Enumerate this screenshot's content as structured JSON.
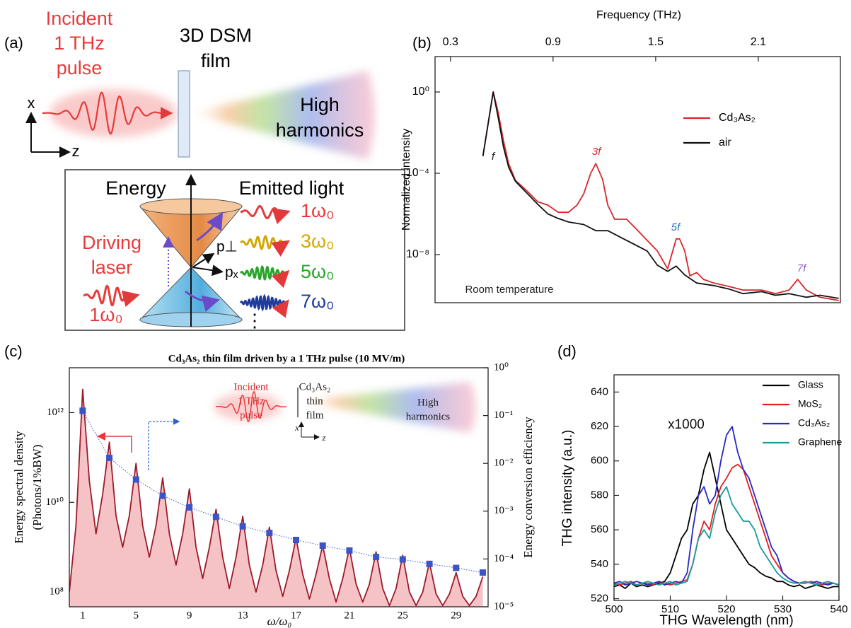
{
  "panel_labels": [
    "(a)",
    "(b)",
    "(c)",
    "(d)"
  ],
  "diagram_a": {
    "incident": [
      "Incident",
      "1 THz",
      "pulse"
    ],
    "film": [
      "3D DSM",
      "film"
    ],
    "harmonics": [
      "High",
      "harmonics"
    ],
    "axis_x": "x",
    "axis_z": "z",
    "energy": "Energy",
    "emitted": "Emitted light",
    "driving": [
      "Driving",
      "laser"
    ],
    "driving_order": "1ω₀",
    "p_perp": "p⊥",
    "p_x": "pₓ",
    "orders": [
      "1ω₀",
      "3ω₀",
      "5ω₀",
      "7ω₀"
    ],
    "more": "⋮"
  },
  "chart_data": [
    {
      "type": "line",
      "xlabel": "Frequency (THz)",
      "ylabel": "Normalized intensity",
      "xlim": [
        0.21,
        2.58
      ],
      "xticks": [
        0.3,
        0.9,
        1.5,
        2.1
      ],
      "yscale": "log",
      "ylim": [
        4.3e-11,
        55
      ],
      "yticks": [
        {
          "value": 1,
          "label": "10⁰"
        },
        {
          "value": 0.0001,
          "label": "10⁻⁴"
        },
        {
          "value": 1e-08,
          "label": "10⁻⁸"
        }
      ],
      "legend": "upper right",
      "series": [
        {
          "name": "Cd₃As₂",
          "color": "#d9262c",
          "x": [
            0.49,
            0.55,
            0.58,
            0.61,
            0.64,
            0.68,
            0.75,
            0.81,
            0.87,
            0.93,
            0.99,
            1.04,
            1.08,
            1.12,
            1.15,
            1.19,
            1.22,
            1.26,
            1.33,
            1.39,
            1.45,
            1.51,
            1.57,
            1.62,
            1.64,
            1.67,
            1.7,
            1.74,
            1.78,
            1.84,
            1.93,
            2.01,
            2.12,
            2.2,
            2.28,
            2.33,
            2.38,
            2.46,
            2.57
          ],
          "values": [
            0.0007,
            1,
            0.09,
            0.004,
            0.0003,
            4.5e-05,
            1.3e-05,
            4e-06,
            2.7e-06,
            1.2e-06,
            1.2e-06,
            2.7e-06,
            1e-05,
            0.0001,
            0.0003,
            5e-05,
            2.7e-06,
            5.5e-07,
            5.5e-07,
            1.7e-07,
            5e-08,
            1.5e-08,
            2e-09,
            5.9e-08,
            5.9e-08,
            1.5e-08,
            9e-10,
            1.3e-09,
            6e-10,
            4e-10,
            2.7e-10,
            1.8e-10,
            1.8e-10,
            1.2e-10,
            1.8e-10,
            6e-10,
            1.8e-10,
            8e-11,
            5.5e-11
          ]
        },
        {
          "name": "air",
          "color": "#111111",
          "x": [
            0.49,
            0.55,
            0.58,
            0.61,
            0.64,
            0.68,
            0.75,
            0.81,
            0.87,
            0.93,
            0.99,
            1.08,
            1.15,
            1.22,
            1.33,
            1.45,
            1.51,
            1.57,
            1.62,
            1.67,
            1.74,
            1.84,
            1.93,
            2.01,
            2.12,
            2.2,
            2.28,
            2.38,
            2.46,
            2.57
          ],
          "values": [
            0.0007,
            1,
            0.05,
            0.002,
            0.0002,
            4e-05,
            1e-05,
            3e-06,
            1e-06,
            6e-07,
            4e-07,
            3e-07,
            1.5e-07,
            1.5e-07,
            5e-08,
            1.5e-08,
            3e-09,
            1.5e-09,
            2.7e-09,
            1e-09,
            4e-10,
            3e-10,
            2e-10,
            1.2e-10,
            1.5e-10,
            1e-10,
            1.2e-10,
            8e-11,
            1e-10,
            7e-11
          ]
        }
      ],
      "annotations": [
        {
          "text": "f",
          "color": "#222222"
        },
        {
          "text": "3f",
          "color": "#d9262c"
        },
        {
          "text": "5f",
          "color": "#2a6fc0"
        },
        {
          "text": "7f",
          "color": "#8a5cc4"
        },
        {
          "text": "Room temperature",
          "color": "#222222"
        }
      ]
    },
    {
      "type": "line",
      "title": "Cd₃As₂ thin film driven by a 1 THz pulse (10 MV/m)",
      "xlabel": "ω/ω₀",
      "ylabel": [
        "Energy spectral density",
        "(Photons/1%BW)"
      ],
      "y2label": "Energy conversion efficiency",
      "xlim": [
        0,
        31.4
      ],
      "xticks": [
        1,
        5,
        9,
        13,
        17,
        21,
        25,
        29
      ],
      "yscale": "log",
      "ylim": [
        47000000.0,
        10000000000000.0
      ],
      "yticks": [
        {
          "value": 100000000.0,
          "label": "10⁸"
        },
        {
          "value": 10000000000.0,
          "label": "10¹⁰"
        },
        {
          "value": 1000000000000.0,
          "label": "10¹²"
        }
      ],
      "y2lim": [
        1e-05,
        1
      ],
      "y2ticks": [
        {
          "value": 1,
          "label": "10⁰"
        },
        {
          "value": 0.1,
          "label": "10⁻¹"
        },
        {
          "value": 0.01,
          "label": "10⁻²"
        },
        {
          "value": 0.001,
          "label": "10⁻³"
        },
        {
          "value": 0.0001,
          "label": "10⁻⁴"
        },
        {
          "value": 1e-05,
          "label": "10⁻⁵"
        }
      ],
      "series": [
        {
          "color": "#9b1b2a",
          "fill": "#f5c3c6",
          "x": [
            0,
            0.5,
            1,
            1.5,
            2,
            2.5,
            3,
            3.5,
            4,
            4.5,
            5,
            5.5,
            6,
            6.5,
            7,
            7.5,
            8,
            8.5,
            9,
            9.5,
            10,
            10.5,
            11,
            11.5,
            12,
            12.5,
            13,
            13.5,
            14,
            14.5,
            15,
            15.5,
            16,
            16.5,
            17,
            17.5,
            18,
            18.5,
            19,
            19.5,
            20,
            20.5,
            21,
            21.5,
            22,
            22.5,
            23,
            23.5,
            24,
            24.5,
            25,
            25.5,
            26,
            26.5,
            27,
            27.5,
            28,
            28.5,
            29,
            29.5,
            30,
            30.5,
            31
          ],
          "values": [
            100000000.0,
            3000000000.0,
            3300000000000.0,
            30000000000.0,
            2000000000.0,
            15000000000.0,
            220000000000.0,
            5000000000.0,
            1000000000.0,
            5000000000.0,
            74000000000.0,
            3000000000.0,
            600000000.0,
            3000000000.0,
            35000000000.0,
            2000000000.0,
            400000000.0,
            2000000000.0,
            20000000000.0,
            1000000000.0,
            200000000.0,
            1000000000.0,
            7000000000.0,
            600000000.0,
            120000000.0,
            600000000.0,
            4900000000.0,
            400000000.0,
            100000000.0,
            400000000.0,
            2800000000.0,
            300000000.0,
            80000000.0,
            300000000.0,
            1600000000.0,
            250000000.0,
            70000000.0,
            250000000.0,
            1100000000.0,
            200000000.0,
            60000000.0,
            200000000.0,
            960000000.0,
            150000000.0,
            60000000.0,
            150000000.0,
            790000000.0,
            120000000.0,
            50000000.0,
            120000000.0,
            660000000.0,
            100000000.0,
            50000000.0,
            100000000.0,
            460000000.0,
            90000000.0,
            50000000.0,
            90000000.0,
            270000000.0,
            80000000.0,
            50000000.0,
            80000000.0,
            220000000.0
          ]
        },
        {
          "color": "#3b55c8",
          "axis": "y2",
          "markers": true,
          "line_style": "dotted",
          "x": [
            1,
            3,
            5,
            7,
            9,
            11,
            13,
            15,
            17,
            19,
            21,
            23,
            25,
            27,
            29,
            31
          ],
          "values": [
            0.126,
            0.013,
            0.0046,
            0.0021,
            0.0012,
            0.00076,
            0.00048,
            0.00035,
            0.00025,
            0.00019,
            0.00015,
            0.00011,
            9.8e-05,
            7.9e-05,
            6.5e-05,
            5.2e-05
          ]
        }
      ],
      "annotations": [
        {
          "text": "Incident",
          "color": "#d9262c"
        },
        {
          "text": "1 THz",
          "color": "#d9262c"
        },
        {
          "text": "pulse",
          "color": "#d9262c"
        },
        {
          "text": "Cd₃As₂",
          "color": "#222222"
        },
        {
          "text": "thin",
          "color": "#222222"
        },
        {
          "text": "film",
          "color": "#222222"
        },
        {
          "text": "High",
          "color": "#222222"
        },
        {
          "text": "harmonics",
          "color": "#222222"
        },
        {
          "text": "x",
          "color": "#222222"
        },
        {
          "text": "z",
          "color": "#222222"
        }
      ]
    },
    {
      "type": "line",
      "xlabel": "THG Wavelength (nm)",
      "ylabel": "THG intensity (a.u.)",
      "xlim": [
        500,
        540
      ],
      "xticks": [
        500,
        510,
        520,
        530,
        540
      ],
      "ylim": [
        519,
        650
      ],
      "yticks": [
        520,
        540,
        560,
        580,
        600,
        620,
        640
      ],
      "legend": "upper right",
      "x": [
        500,
        501,
        502,
        503,
        504,
        505,
        506,
        507,
        508,
        509,
        510,
        511,
        512,
        513,
        514,
        515,
        516,
        517,
        518,
        519,
        520,
        521,
        522,
        523,
        524,
        525,
        526,
        527,
        528,
        529,
        530,
        531,
        532,
        533,
        534,
        535,
        536,
        537,
        538,
        539,
        540
      ],
      "series": [
        {
          "name": "Glass",
          "color": "#000000",
          "values": [
            527,
            528,
            526,
            529,
            527,
            528,
            527,
            528,
            529,
            530,
            535,
            545,
            555,
            560,
            575,
            580,
            595,
            605,
            590,
            575,
            560,
            555,
            550,
            545,
            540,
            538,
            535,
            533,
            532,
            530,
            530,
            528,
            527,
            528,
            526,
            527,
            528,
            527,
            526,
            527,
            527
          ]
        },
        {
          "name": "MoS₂",
          "color": "#e02020",
          "values": [
            529,
            528,
            529,
            530,
            528,
            529,
            529,
            528,
            530,
            529,
            528,
            529,
            530,
            531,
            540,
            555,
            565,
            560,
            575,
            585,
            590,
            596,
            598,
            595,
            585,
            575,
            565,
            555,
            545,
            540,
            535,
            532,
            530,
            529,
            529,
            530,
            529,
            528,
            529,
            529,
            528
          ]
        },
        {
          "name": "Cd₃As₂",
          "color": "#2828c8",
          "values": [
            529,
            530,
            528,
            529,
            530,
            529,
            528,
            529,
            530,
            528,
            529,
            530,
            529,
            535,
            560,
            580,
            585,
            575,
            580,
            600,
            615,
            620,
            605,
            595,
            590,
            580,
            570,
            560,
            550,
            545,
            535,
            532,
            530,
            529,
            530,
            529,
            530,
            529,
            528,
            529,
            528
          ]
        },
        {
          "name": "Graphene",
          "color": "#1a9a9a",
          "values": [
            528,
            529,
            530,
            529,
            528,
            529,
            530,
            529,
            528,
            529,
            530,
            528,
            529,
            530,
            540,
            555,
            560,
            555,
            570,
            580,
            585,
            575,
            570,
            565,
            565,
            560,
            550,
            545,
            540,
            535,
            532,
            530,
            529,
            529,
            530,
            529,
            528,
            529,
            530,
            529,
            528
          ]
        }
      ],
      "annotations": [
        {
          "text": "x1000",
          "color": "#111111"
        }
      ]
    }
  ]
}
